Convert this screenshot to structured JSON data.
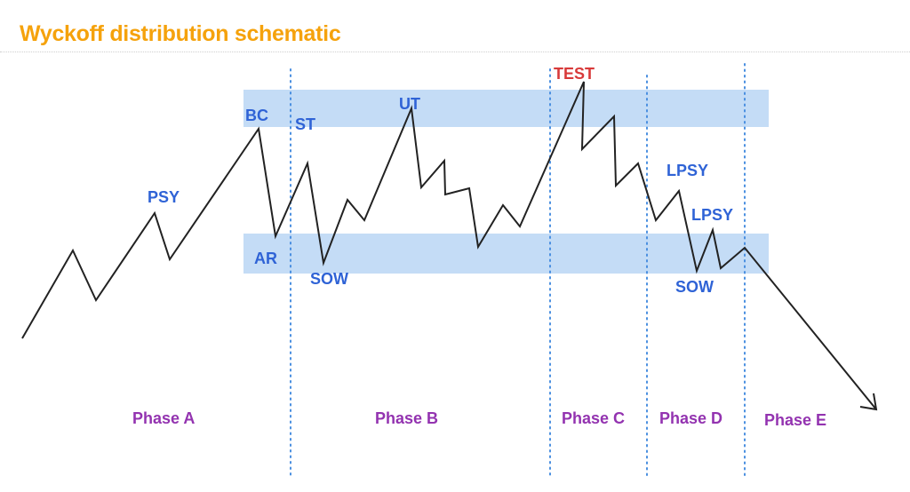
{
  "title": "Wyckoff distribution schematic",
  "colors": {
    "title": "#f5a20c",
    "band": "#c4dcf6",
    "event_label": "#2f63d6",
    "test_label": "#d83a3a",
    "phase_label": "#9333b0",
    "divider": "#4a8fe0",
    "price_line": "#222222"
  },
  "event_labels": {
    "psy": "PSY",
    "bc": "BC",
    "ar": "AR",
    "st": "ST",
    "sow1": "SOW",
    "ut": "UT",
    "test": "TEST",
    "lpsy1": "LPSY",
    "lpsy2": "LPSY",
    "sow2": "SOW"
  },
  "phases": {
    "a": "Phase A",
    "b": "Phase B",
    "c": "Phase C",
    "d": "Phase D",
    "e": "Phase E"
  }
}
